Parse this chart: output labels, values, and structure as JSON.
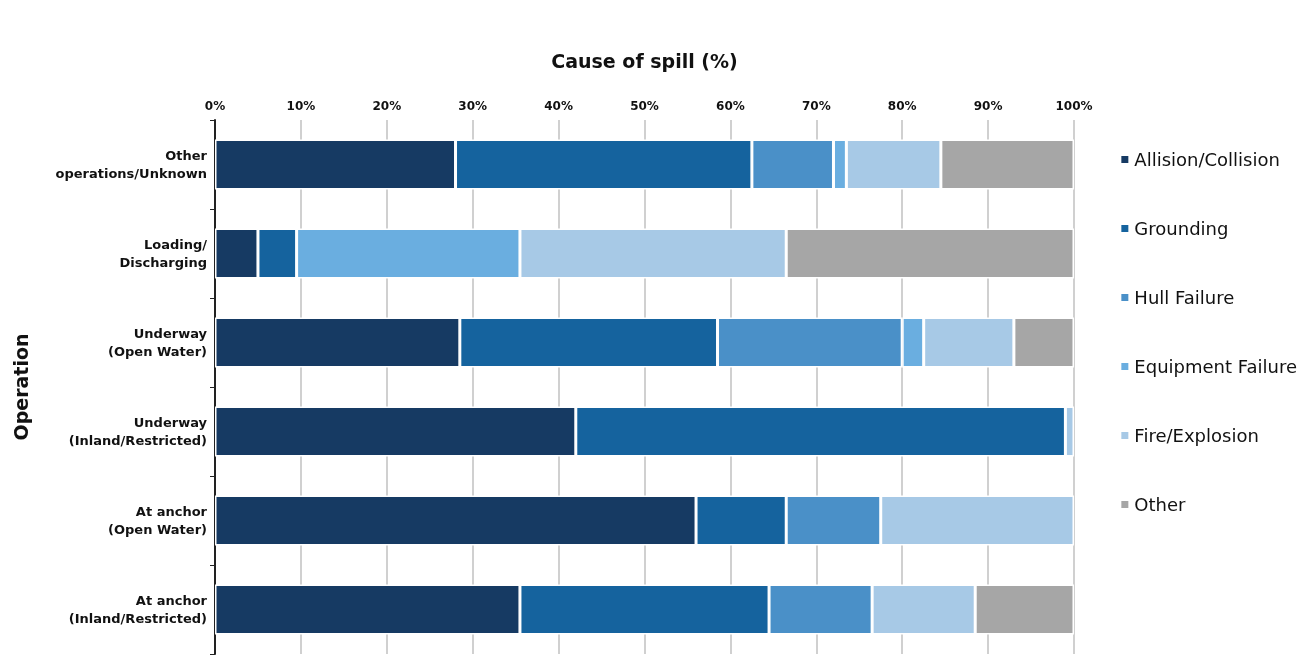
{
  "chart_data": {
    "type": "bar",
    "orientation": "horizontal",
    "stacked": true,
    "xlabel": "Cause of spill (%)",
    "ylabel": "Operation",
    "categories": [
      "Other\noperations/Unknown",
      "Loading/\nDischarging",
      "Underway\n(Open Water)",
      "Underway\n(Inland/Restricted)",
      "At anchor\n(Open Water)",
      "At anchor\n(Inland/Restricted)"
    ],
    "series": [
      {
        "name": "Allision/Collision",
        "color": "#163a63",
        "values": [
          28,
          5,
          28.5,
          42,
          56,
          35.5
        ]
      },
      {
        "name": "Grounding",
        "color": "#15639e",
        "values": [
          34.5,
          4.5,
          30,
          57,
          10.5,
          29
        ]
      },
      {
        "name": "Hull Failure",
        "color": "#4a90c8",
        "values": [
          9.5,
          0,
          21.5,
          0,
          11,
          12
        ]
      },
      {
        "name": "Equipment Failure",
        "color": "#6aaee0",
        "values": [
          1.5,
          26,
          2.5,
          0,
          0,
          0
        ]
      },
      {
        "name": "Fire/Explosion",
        "color": "#a7c9e6",
        "values": [
          11,
          31,
          10.5,
          1,
          22.5,
          12
        ]
      },
      {
        "name": "Other",
        "color": "#a6a6a6",
        "values": [
          15.5,
          33.5,
          7,
          0,
          0,
          11.5
        ]
      }
    ],
    "xlim": [
      0,
      100
    ],
    "xticks": [
      {
        "value": 0,
        "label": "0%"
      },
      {
        "value": 10,
        "label": "10%"
      },
      {
        "value": 20,
        "label": "20%"
      },
      {
        "value": 30,
        "label": "30%"
      },
      {
        "value": 40,
        "label": "40%"
      },
      {
        "value": 50,
        "label": "50%"
      },
      {
        "value": 60,
        "label": "60%"
      },
      {
        "value": 70,
        "label": "70%"
      },
      {
        "value": 80,
        "label": "80%"
      },
      {
        "value": 90,
        "label": "90%"
      },
      {
        "value": 100,
        "label": "100%"
      }
    ],
    "grid": "x",
    "legend": "right"
  }
}
